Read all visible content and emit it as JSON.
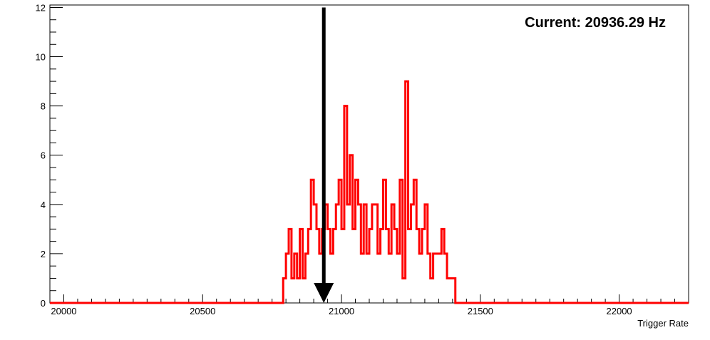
{
  "chart_data": {
    "type": "histogram",
    "title": "",
    "xlabel": "Trigger Rate",
    "ylabel": "",
    "xlim": [
      19950,
      22250
    ],
    "ylim": [
      0,
      12.1
    ],
    "x_ticks_labeled": [
      20000,
      20500,
      21000,
      21500,
      22000
    ],
    "y_ticks_labeled": [
      0,
      2,
      4,
      6,
      8,
      10,
      12
    ],
    "annotation": {
      "text": "Current: 20936.29 Hz",
      "position": "top-right"
    },
    "marker": {
      "type": "down-arrow",
      "x": 20936.29,
      "y_from": 12,
      "y_to": 0
    },
    "grid": false,
    "bin_width": 10,
    "series": [
      {
        "color": "#ff0000",
        "bins_start": [
          20790,
          20800,
          20810,
          20820,
          20830,
          20840,
          20850,
          20860,
          20870,
          20880,
          20890,
          20900,
          20910,
          20920,
          20930,
          20940,
          20950,
          20960,
          20970,
          20980,
          20990,
          21000,
          21010,
          21020,
          21030,
          21040,
          21050,
          21060,
          21070,
          21080,
          21090,
          21100,
          21110,
          21120,
          21130,
          21140,
          21150,
          21160,
          21170,
          21180,
          21190,
          21200,
          21210,
          21220,
          21230,
          21240,
          21250,
          21260,
          21270,
          21280,
          21290,
          21300,
          21310,
          21320,
          21330,
          21340,
          21350,
          21360,
          21370,
          21380,
          21390,
          21400,
          21410
        ],
        "counts": [
          1,
          2,
          3,
          1,
          2,
          1,
          3,
          1,
          2,
          3,
          5,
          4,
          3,
          2,
          3,
          4,
          3,
          2,
          3,
          4,
          5,
          3,
          8,
          4,
          6,
          3,
          5,
          4,
          2,
          4,
          2,
          3,
          4,
          4,
          2,
          3,
          5,
          3,
          2,
          4,
          3,
          2,
          5,
          1,
          9,
          3,
          4,
          5,
          3,
          2,
          3,
          4,
          2,
          1,
          2,
          2,
          2,
          3,
          2,
          1,
          1,
          1,
          0
        ]
      }
    ]
  }
}
